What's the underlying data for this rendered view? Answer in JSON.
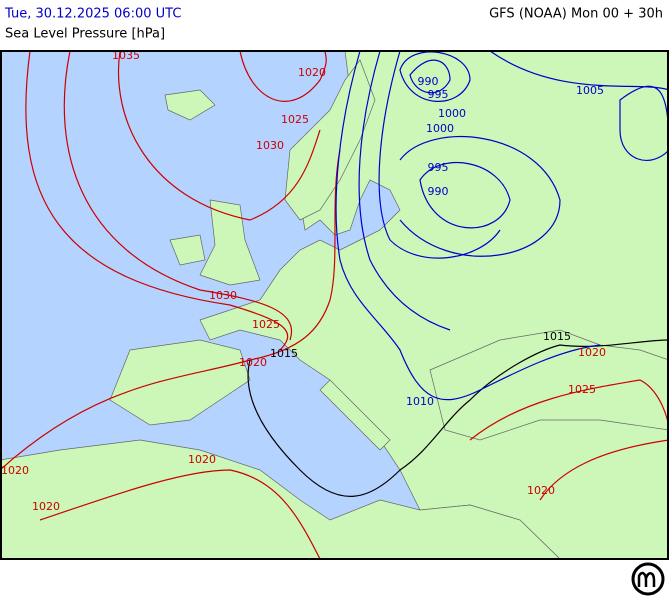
{
  "header": {
    "valid_time": "Tue, 30.12.2025 06:00 UTC",
    "parameter": "Sea Level Pressure [hPa]",
    "model_run": "GFS (NOAA) Mon 00 + 30h"
  },
  "isobar_labels": [
    {
      "value": 1035,
      "color": "#cc0000"
    },
    {
      "value": 1020,
      "color": "#cc0000"
    },
    {
      "value": 1025,
      "color": "#cc0000"
    },
    {
      "value": 1030,
      "color": "#cc0000"
    },
    {
      "value": 990,
      "color": "#0000cc"
    },
    {
      "value": 995,
      "color": "#0000cc"
    },
    {
      "value": 1000,
      "color": "#0000cc"
    },
    {
      "value": 1000,
      "color": "#0000cc"
    },
    {
      "value": 1005,
      "color": "#0000cc"
    },
    {
      "value": 995,
      "color": "#0000cc"
    },
    {
      "value": 990,
      "color": "#0000cc"
    },
    {
      "value": 1030,
      "color": "#cc0000"
    },
    {
      "value": 1025,
      "color": "#cc0000"
    },
    {
      "value": 1015,
      "color": "#000000"
    },
    {
      "value": 1020,
      "color": "#cc0000"
    },
    {
      "value": 1015,
      "color": "#000000"
    },
    {
      "value": 1020,
      "color": "#cc0000"
    },
    {
      "value": 1025,
      "color": "#cc0000"
    },
    {
      "value": 1010,
      "color": "#0000cc"
    },
    {
      "value": 1020,
      "color": "#cc0000"
    },
    {
      "value": 1020,
      "color": "#cc0000"
    },
    {
      "value": 1020,
      "color": "#cc0000"
    },
    {
      "value": 1020,
      "color": "#cc0000"
    }
  ]
}
